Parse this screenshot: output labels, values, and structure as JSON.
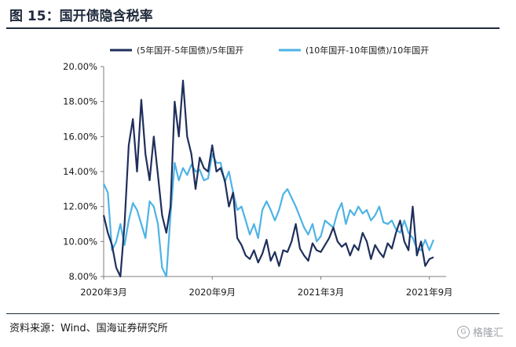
{
  "figure_title": "图 15：国开债隐含税率",
  "source_note": "资料来源：Wind、国海证券研究所",
  "watermark": {
    "label": "格隆汇",
    "icon": "G"
  },
  "chart_data": {
    "type": "line",
    "title": "图 15：国开债隐含税率",
    "xlabel": "",
    "ylabel": "",
    "ylim": [
      0.08,
      0.2
    ],
    "yticks": [
      "8.00%",
      "10.00%",
      "12.00%",
      "14.00%",
      "16.00%",
      "18.00%",
      "20.00%"
    ],
    "ytick_values": [
      0.08,
      0.1,
      0.12,
      0.14,
      0.16,
      0.18,
      0.2
    ],
    "xticks": [
      "2020年3月",
      "2020年9月",
      "2021年3月",
      "2021年9月"
    ],
    "xtick_positions": [
      0,
      26,
      52,
      78
    ],
    "xlim": [
      0,
      82
    ],
    "grid": false,
    "legend_position": "top",
    "series": [
      {
        "name": "(5年国开-5年国债)/5年国开",
        "color": "#1f2f5c",
        "x": [
          0,
          1,
          2,
          3,
          4,
          5,
          6,
          7,
          8,
          9,
          10,
          11,
          12,
          13,
          14,
          15,
          16,
          17,
          18,
          19,
          20,
          21,
          22,
          23,
          24,
          25,
          26,
          27,
          28,
          29,
          30,
          31,
          32,
          33,
          34,
          35,
          36,
          37,
          38,
          39,
          40,
          41,
          42,
          43,
          44,
          45,
          46,
          47,
          48,
          49,
          50,
          51,
          52,
          53,
          54,
          55,
          56,
          57,
          58,
          59,
          60,
          61,
          62,
          63,
          64,
          65,
          66,
          67,
          68,
          69,
          70,
          71,
          72,
          73,
          74,
          75,
          76,
          77,
          78,
          79
        ],
        "values": [
          0.115,
          0.105,
          0.098,
          0.085,
          0.08,
          0.11,
          0.155,
          0.17,
          0.14,
          0.181,
          0.15,
          0.135,
          0.16,
          0.138,
          0.115,
          0.105,
          0.12,
          0.18,
          0.16,
          0.192,
          0.16,
          0.15,
          0.13,
          0.148,
          0.142,
          0.14,
          0.155,
          0.14,
          0.142,
          0.135,
          0.12,
          0.128,
          0.102,
          0.098,
          0.092,
          0.09,
          0.095,
          0.088,
          0.093,
          0.101,
          0.089,
          0.094,
          0.086,
          0.095,
          0.094,
          0.1,
          0.11,
          0.096,
          0.092,
          0.089,
          0.099,
          0.095,
          0.094,
          0.098,
          0.102,
          0.108,
          0.1,
          0.097,
          0.099,
          0.092,
          0.098,
          0.095,
          0.105,
          0.1,
          0.09,
          0.098,
          0.094,
          0.091,
          0.099,
          0.096,
          0.105,
          0.112,
          0.1,
          0.095,
          0.12,
          0.092,
          0.1,
          0.086,
          0.09,
          0.091
        ]
      },
      {
        "name": "(10年国开-10年国债)/10年国开",
        "color": "#4db3e6",
        "x": [
          0,
          1,
          2,
          3,
          4,
          5,
          6,
          7,
          8,
          9,
          10,
          11,
          12,
          13,
          14,
          15,
          16,
          17,
          18,
          19,
          20,
          21,
          22,
          23,
          24,
          25,
          26,
          27,
          28,
          29,
          30,
          31,
          32,
          33,
          34,
          35,
          36,
          37,
          38,
          39,
          40,
          41,
          42,
          43,
          44,
          45,
          46,
          47,
          48,
          49,
          50,
          51,
          52,
          53,
          54,
          55,
          56,
          57,
          58,
          59,
          60,
          61,
          62,
          63,
          64,
          65,
          66,
          67,
          68,
          69,
          70,
          71,
          72,
          73,
          74,
          75,
          76,
          77,
          78,
          79
        ],
        "values": [
          0.133,
          0.128,
          0.095,
          0.1,
          0.11,
          0.098,
          0.112,
          0.122,
          0.118,
          0.11,
          0.102,
          0.123,
          0.12,
          0.11,
          0.085,
          0.08,
          0.115,
          0.145,
          0.135,
          0.142,
          0.138,
          0.144,
          0.14,
          0.141,
          0.135,
          0.136,
          0.15,
          0.145,
          0.145,
          0.134,
          0.14,
          0.128,
          0.118,
          0.12,
          0.112,
          0.104,
          0.11,
          0.102,
          0.118,
          0.123,
          0.118,
          0.112,
          0.118,
          0.127,
          0.13,
          0.125,
          0.12,
          0.114,
          0.108,
          0.104,
          0.11,
          0.1,
          0.103,
          0.112,
          0.11,
          0.108,
          0.117,
          0.122,
          0.11,
          0.118,
          0.115,
          0.12,
          0.116,
          0.118,
          0.112,
          0.115,
          0.12,
          0.111,
          0.11,
          0.112,
          0.107,
          0.105,
          0.112,
          0.105,
          0.102,
          0.096,
          0.095,
          0.101,
          0.095,
          0.101
        ]
      }
    ]
  }
}
